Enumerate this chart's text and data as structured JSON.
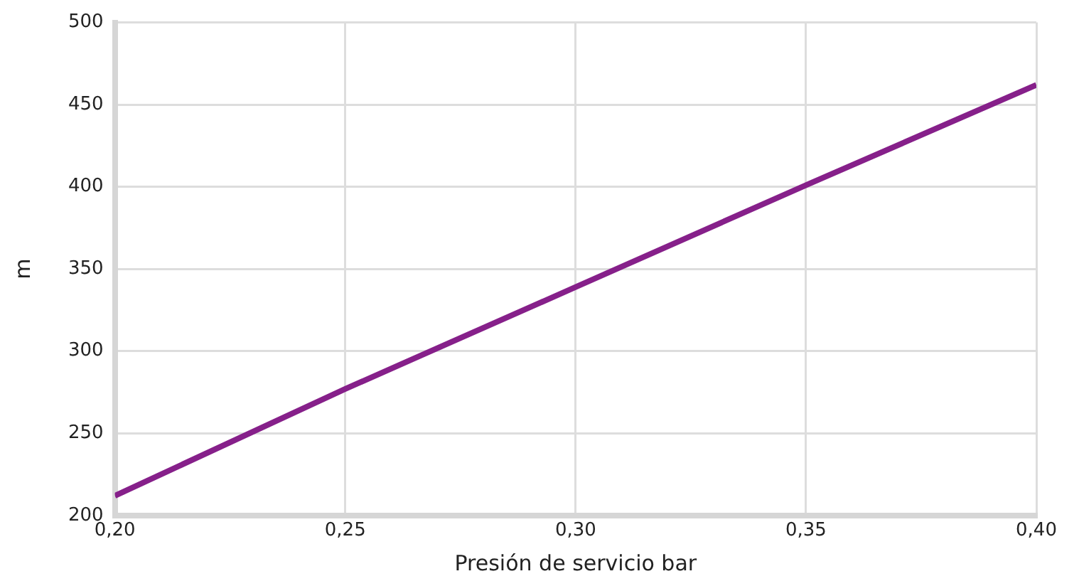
{
  "chart_data": {
    "type": "line",
    "xlabel": "Presión de servicio bar",
    "ylabel": "m",
    "x": [
      0.2,
      0.25,
      0.3,
      0.35,
      0.4
    ],
    "series": [
      {
        "color": "#86208a",
        "values": [
          212,
          277,
          339,
          401,
          462
        ]
      }
    ],
    "xlim": [
      0.2,
      0.4
    ],
    "xticks": [
      {
        "value": 0.2,
        "label": "0,20"
      },
      {
        "value": 0.25,
        "label": "0,25"
      },
      {
        "value": 0.3,
        "label": "0,30"
      },
      {
        "value": 0.35,
        "label": "0,35"
      },
      {
        "value": 0.4,
        "label": "0,40"
      }
    ],
    "ylim": [
      200,
      500
    ],
    "yticks": [
      200,
      250,
      300,
      350,
      400,
      450,
      500
    ],
    "grid": true,
    "legend": false,
    "marker": "none",
    "line_style": "solid"
  }
}
